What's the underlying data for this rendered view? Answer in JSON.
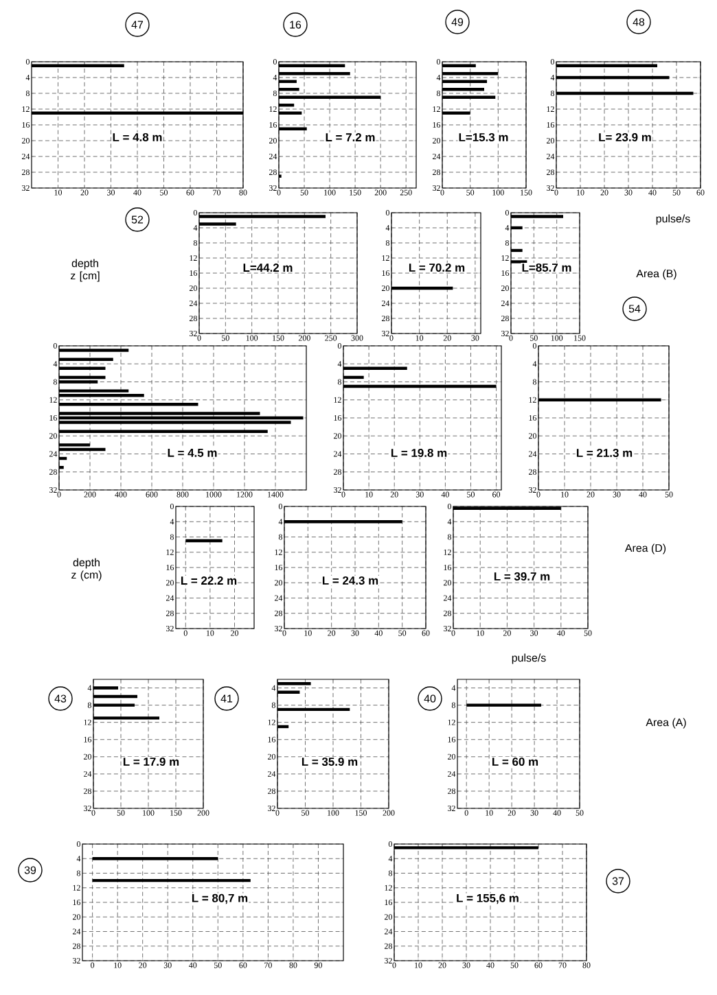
{
  "chart_data": [
    {
      "type": "bar",
      "orientation": "horizontal",
      "title": "47",
      "color": "#000000",
      "grid": true,
      "x": [
        1,
        13
      ],
      "values": [
        35,
        80
      ],
      "xlim": [
        0,
        80
      ],
      "xticks": [
        10,
        20,
        30,
        40,
        50,
        60,
        70,
        80
      ],
      "ylim": [
        32,
        0
      ],
      "yticks": [
        0,
        4,
        8,
        12,
        16,
        20,
        24,
        28,
        32
      ],
      "annotations": [
        "L = 4.8 m"
      ]
    },
    {
      "type": "bar",
      "orientation": "horizontal",
      "title": "16",
      "color": "#000000",
      "grid": true,
      "x": [
        1,
        3,
        5,
        7,
        9,
        11,
        13,
        17,
        29
      ],
      "values": [
        130,
        140,
        35,
        40,
        200,
        30,
        45,
        55,
        5
      ],
      "xlim": [
        0,
        270
      ],
      "xticks": [
        0,
        50,
        100,
        150,
        200,
        250
      ],
      "ylim": [
        32,
        0
      ],
      "yticks": [
        0,
        4,
        8,
        12,
        16,
        20,
        24,
        28,
        32
      ],
      "annotations": [
        "L = 7.2 m"
      ]
    },
    {
      "type": "bar",
      "orientation": "horizontal",
      "title": "49",
      "color": "#000000",
      "grid": true,
      "x": [
        1,
        3,
        5,
        7,
        9,
        13
      ],
      "values": [
        60,
        100,
        80,
        75,
        95,
        50
      ],
      "xlim": [
        0,
        150
      ],
      "xticks": [
        0,
        50,
        100,
        150
      ],
      "ylim": [
        32,
        0
      ],
      "yticks": [
        0,
        4,
        8,
        12,
        16,
        20,
        24,
        28,
        32
      ],
      "annotations": [
        "L=15.3 m"
      ]
    },
    {
      "type": "bar",
      "orientation": "horizontal",
      "title": "48",
      "xlabel": "pulse/s",
      "color": "#000000",
      "grid": true,
      "x": [
        1,
        4,
        8
      ],
      "values": [
        42,
        47,
        57
      ],
      "xlim": [
        0,
        60
      ],
      "xticks": [
        0,
        10,
        20,
        30,
        40,
        50,
        60
      ],
      "ylim": [
        32,
        0
      ],
      "yticks": [
        0,
        4,
        8,
        12,
        16,
        20,
        24,
        28,
        32
      ],
      "annotations": [
        "L= 23.9 m"
      ]
    },
    {
      "type": "bar",
      "orientation": "horizontal",
      "title": "52",
      "ylabel": "depth z [cm]",
      "color": "#000000",
      "grid": true,
      "x": [
        1,
        3
      ],
      "values": [
        240,
        70
      ],
      "xlim": [
        0,
        300
      ],
      "xticks": [
        0,
        50,
        100,
        150,
        200,
        250,
        300
      ],
      "ylim": [
        32,
        0
      ],
      "yticks": [
        0,
        4,
        8,
        12,
        16,
        20,
        24,
        28,
        32
      ],
      "annotations": [
        "L=44.2 m"
      ]
    },
    {
      "type": "bar",
      "orientation": "horizontal",
      "color": "#000000",
      "grid": true,
      "x": [
        20
      ],
      "values": [
        22
      ],
      "xlim": [
        0,
        32
      ],
      "xticks": [
        0,
        10,
        20,
        30
      ],
      "ylim": [
        32,
        0
      ],
      "yticks": [
        0,
        4,
        8,
        12,
        16,
        20,
        24,
        28,
        32
      ],
      "annotations": [
        "L = 70.2 m"
      ]
    },
    {
      "type": "bar",
      "orientation": "horizontal",
      "color": "#000000",
      "grid": true,
      "x": [
        1,
        4,
        10,
        13
      ],
      "values": [
        114,
        25,
        25,
        35
      ],
      "xlim": [
        0,
        150
      ],
      "xticks": [
        0,
        50,
        100,
        150
      ],
      "ylim": [
        32,
        0
      ],
      "yticks": [
        0,
        4,
        8,
        12,
        16,
        20,
        24,
        28,
        32
      ],
      "annotations": [
        "L=85.7 m",
        "Area (B)",
        "54"
      ]
    },
    {
      "type": "bar",
      "orientation": "horizontal",
      "color": "#000000",
      "grid": true,
      "x": [
        1,
        3,
        5,
        7,
        8,
        10,
        11,
        13,
        15,
        16,
        17,
        19,
        22,
        23,
        25,
        27
      ],
      "values": [
        450,
        350,
        300,
        300,
        250,
        450,
        550,
        900,
        1300,
        1580,
        1500,
        1350,
        200,
        300,
        50,
        30
      ],
      "xlim": [
        0,
        1600
      ],
      "xticks": [
        0,
        200,
        400,
        600,
        800,
        1000,
        1200,
        1400
      ],
      "ylim": [
        32,
        0
      ],
      "yticks": [
        0,
        4,
        8,
        12,
        16,
        20,
        24,
        28,
        32
      ],
      "annotations": [
        "L = 4.5 m"
      ]
    },
    {
      "type": "bar",
      "orientation": "horizontal",
      "color": "#000000",
      "grid": true,
      "x": [
        5,
        7,
        9
      ],
      "values": [
        25,
        8,
        60
      ],
      "xlim": [
        0,
        62
      ],
      "xticks": [
        0,
        10,
        20,
        30,
        40,
        50,
        60
      ],
      "ylim": [
        32,
        0
      ],
      "yticks": [
        0,
        4,
        8,
        12,
        16,
        20,
        24,
        28,
        32
      ],
      "annotations": [
        "L = 19.8 m"
      ]
    },
    {
      "type": "bar",
      "orientation": "horizontal",
      "color": "#000000",
      "grid": true,
      "x": [
        12
      ],
      "values": [
        47
      ],
      "xlim": [
        0,
        50
      ],
      "xticks": [
        0,
        10,
        20,
        30,
        40,
        50
      ],
      "ylim": [
        32,
        0
      ],
      "yticks": [
        0,
        4,
        8,
        12,
        16,
        20,
        24,
        28,
        32
      ],
      "annotations": [
        "L = 21.3 m"
      ]
    },
    {
      "type": "bar",
      "orientation": "horizontal",
      "ylabel": "depth z (cm)",
      "color": "#000000",
      "grid": true,
      "x": [
        9
      ],
      "values": [
        15
      ],
      "xlim": [
        -4,
        28
      ],
      "xticks": [
        0,
        10,
        20
      ],
      "ylim": [
        32,
        0
      ],
      "yticks": [
        0,
        4,
        8,
        12,
        16,
        20,
        24,
        28,
        32
      ],
      "annotations": [
        "L = 22.2 m"
      ]
    },
    {
      "type": "bar",
      "orientation": "horizontal",
      "color": "#000000",
      "grid": true,
      "x": [
        4
      ],
      "values": [
        50
      ],
      "xlim": [
        0,
        60
      ],
      "xticks": [
        0,
        10,
        20,
        30,
        40,
        50,
        60
      ],
      "ylim": [
        32,
        0
      ],
      "yticks": [
        0,
        4,
        8,
        12,
        16,
        20,
        24,
        28,
        32
      ],
      "annotations": [
        "L = 24.3 m"
      ]
    },
    {
      "type": "bar",
      "orientation": "horizontal",
      "xlabel": "pulse/s",
      "color": "#000000",
      "grid": true,
      "x": [
        0.5
      ],
      "values": [
        40
      ],
      "xlim": [
        0,
        50
      ],
      "xticks": [
        0,
        10,
        20,
        30,
        40,
        50
      ],
      "ylim": [
        32,
        0
      ],
      "yticks": [
        0,
        4,
        8,
        12,
        16,
        20,
        24,
        28,
        32
      ],
      "annotations": [
        "L = 39.7 m",
        "Area (D)"
      ]
    },
    {
      "type": "bar",
      "orientation": "horizontal",
      "title": "43",
      "color": "#000000",
      "grid": true,
      "x": [
        4,
        6,
        8,
        11
      ],
      "values": [
        45,
        80,
        75,
        120
      ],
      "xlim": [
        0,
        200
      ],
      "xticks": [
        0,
        50,
        100,
        150,
        200
      ],
      "ylim": [
        32,
        2
      ],
      "yticks": [
        4,
        8,
        12,
        16,
        20,
        24,
        28,
        32
      ],
      "annotations": [
        "L = 17.9 m"
      ]
    },
    {
      "type": "bar",
      "orientation": "horizontal",
      "title": "41",
      "color": "#000000",
      "grid": true,
      "x": [
        3,
        5,
        9,
        13
      ],
      "values": [
        60,
        40,
        130,
        20
      ],
      "xlim": [
        0,
        200
      ],
      "xticks": [
        0,
        50,
        100,
        150,
        200
      ],
      "ylim": [
        32,
        2
      ],
      "yticks": [
        4,
        8,
        12,
        16,
        20,
        24,
        28,
        32
      ],
      "annotations": [
        "L = 35.9 m"
      ]
    },
    {
      "type": "bar",
      "orientation": "horizontal",
      "title": "40",
      "color": "#000000",
      "grid": true,
      "x": [
        8
      ],
      "values": [
        33
      ],
      "xlim": [
        -4,
        50
      ],
      "xticks": [
        0,
        10,
        20,
        30,
        40,
        50
      ],
      "ylim": [
        32,
        2
      ],
      "yticks": [
        4,
        8,
        12,
        16,
        20,
        24,
        28,
        32
      ],
      "annotations": [
        "L = 60 m",
        "Area (A)"
      ]
    },
    {
      "type": "bar",
      "orientation": "horizontal",
      "title": "39",
      "color": "#000000",
      "grid": true,
      "x": [
        4,
        10
      ],
      "values": [
        50,
        63
      ],
      "xlim": [
        -4,
        100
      ],
      "xticks": [
        0,
        10,
        20,
        30,
        40,
        50,
        60,
        70,
        80,
        90
      ],
      "ylim": [
        32,
        0
      ],
      "yticks": [
        0,
        4,
        8,
        12,
        16,
        20,
        24,
        28,
        32
      ],
      "annotations": [
        "L = 80,7 m"
      ]
    },
    {
      "type": "bar",
      "orientation": "horizontal",
      "color": "#000000",
      "grid": true,
      "x": [
        1
      ],
      "values": [
        60
      ],
      "xlim": [
        0,
        80
      ],
      "xticks": [
        0,
        10,
        20,
        30,
        40,
        50,
        60,
        70,
        80
      ],
      "ylim": [
        32,
        0
      ],
      "yticks": [
        0,
        4,
        8,
        12,
        16,
        20,
        24,
        28,
        32
      ],
      "annotations": [
        "L = 155,6 m",
        "37"
      ]
    }
  ]
}
